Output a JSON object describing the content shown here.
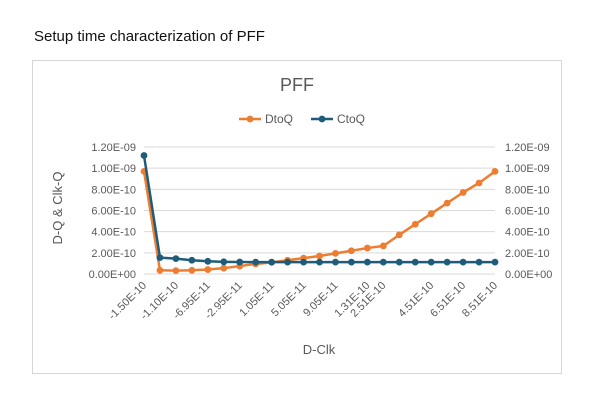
{
  "page": {
    "heading": "Setup time characterization of PFF"
  },
  "colors": {
    "DtoQ": "#ED7D31",
    "CtoQ": "#1F5C7A",
    "grid": "#d9d9d9",
    "axis_text": "#595959"
  },
  "chart_data": {
    "type": "line",
    "title": "PFF",
    "xlabel": "D-Clk",
    "ylabel": "D-Q & Clk-Q",
    "legend_position": "top",
    "grid": true,
    "ylim": [
      0,
      1.2e-09
    ],
    "y_ticks": [
      "0.00E+00",
      "2.00E-10",
      "4.00E-10",
      "6.00E-10",
      "8.00E-10",
      "1.00E-09",
      "1.20E-09"
    ],
    "x": [
      "-1.50E-10",
      "-1.40E-10",
      "-1.10E-10",
      "-8.95E-11",
      "-6.95E-11",
      "-4.95E-11",
      "-2.95E-11",
      "-9.50E-12",
      "1.05E-11",
      "3.05E-11",
      "5.05E-11",
      "7.05E-11",
      "9.05E-11",
      "1.11E-10",
      "1.31E-10",
      "2.51E-10",
      "2.51E-10",
      "3.51E-10",
      "4.51E-10",
      "5.51E-10",
      "6.51E-10",
      "7.51E-10",
      "8.51E-10"
    ],
    "x_tick_labels_shown": [
      "-1.50E-10",
      "-1.10E-10",
      "-6.95E-11",
      "-2.95E-11",
      "1.05E-11",
      "5.05E-11",
      "9.05E-11",
      "1.31E-10",
      "2.51E-10",
      "4.51E-10",
      "6.51E-10",
      "8.51E-10"
    ],
    "series": [
      {
        "name": "DtoQ",
        "values": [
          9.7e-10,
          3.5e-11,
          3.2e-11,
          3.5e-11,
          4.2e-11,
          5.5e-11,
          7.5e-11,
          9.5e-11,
          1.1e-10,
          1.3e-10,
          1.5e-10,
          1.7e-10,
          1.95e-10,
          2.2e-10,
          2.45e-10,
          2.65e-10,
          3.7e-10,
          4.7e-10,
          5.7e-10,
          6.7e-10,
          7.7e-10,
          8.6e-10,
          9.7e-10
        ]
      },
      {
        "name": "CtoQ",
        "values": [
          1.12e-09,
          1.55e-10,
          1.45e-10,
          1.3e-10,
          1.2e-10,
          1.15e-10,
          1.13e-10,
          1.12e-10,
          1.12e-10,
          1.12e-10,
          1.12e-10,
          1.12e-10,
          1.12e-10,
          1.12e-10,
          1.12e-10,
          1.12e-10,
          1.12e-10,
          1.12e-10,
          1.12e-10,
          1.12e-10,
          1.12e-10,
          1.12e-10,
          1.12e-10
        ]
      }
    ]
  }
}
